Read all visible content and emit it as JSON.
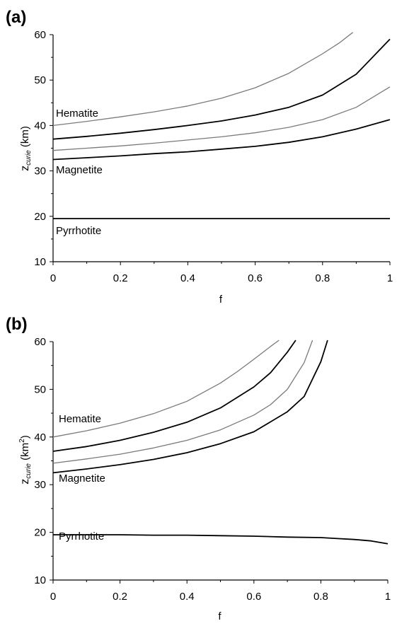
{
  "chart_data": [
    {
      "panel_label": "(a)",
      "type": "line",
      "xlabel": "f",
      "ylabel_main": "z",
      "ylabel_sub": "curie",
      "ylabel_unit": "(km)",
      "ylabel_unit_sup": "",
      "xlim": [
        0,
        1
      ],
      "ylim": [
        10,
        60
      ],
      "xticks": [
        "0",
        "0.2",
        "0.4",
        "0.6",
        "0.8",
        "1"
      ],
      "xtick_values": [
        0,
        0.2,
        0.4,
        0.6,
        0.8,
        1
      ],
      "yticks": [
        "10",
        "20",
        "30",
        "40",
        "50",
        "60"
      ],
      "ytick_values": [
        10,
        20,
        30,
        40,
        50,
        60
      ],
      "grid": false,
      "annotations": [
        "Hematite",
        "Magnetite",
        "Pyrrhotite"
      ],
      "series": [
        {
          "color": "#7a7a7a",
          "x": [
            0,
            0.1,
            0.2,
            0.3,
            0.4,
            0.5,
            0.6,
            0.7,
            0.8,
            0.85,
            0.89
          ],
          "y": [
            40,
            40.9,
            41.9,
            43.0,
            44.3,
            46.0,
            48.3,
            51.5,
            55.8,
            58.2,
            60.5
          ]
        },
        {
          "color": "#000000",
          "x": [
            0,
            0.1,
            0.2,
            0.3,
            0.4,
            0.5,
            0.6,
            0.7,
            0.8,
            0.9,
            1
          ],
          "y": [
            37,
            37.6,
            38.3,
            39.1,
            40.0,
            41.0,
            42.3,
            44.0,
            46.7,
            51.3,
            59.0
          ]
        },
        {
          "color": "#7a7a7a",
          "x": [
            0,
            0.1,
            0.2,
            0.3,
            0.4,
            0.5,
            0.6,
            0.7,
            0.8,
            0.9,
            1
          ],
          "y": [
            34.5,
            35.0,
            35.5,
            36.1,
            36.8,
            37.5,
            38.4,
            39.6,
            41.3,
            44.0,
            48.5
          ]
        },
        {
          "color": "#000000",
          "x": [
            0,
            0.1,
            0.2,
            0.3,
            0.4,
            0.5,
            0.6,
            0.7,
            0.8,
            0.9,
            1
          ],
          "y": [
            32.5,
            32.9,
            33.3,
            33.8,
            34.2,
            34.8,
            35.4,
            36.3,
            37.5,
            39.2,
            41.3
          ]
        },
        {
          "color": "#000000",
          "x": [
            0,
            1
          ],
          "y": [
            19.5,
            19.5
          ]
        }
      ]
    },
    {
      "panel_label": "(b)",
      "type": "line",
      "xlabel": "f",
      "ylabel_main": "z",
      "ylabel_sub": "curie",
      "ylabel_unit": "(km",
      "ylabel_unit_sup": "2",
      "ylabel_unit_close": ")",
      "xlim": [
        0,
        1
      ],
      "ylim": [
        10,
        60
      ],
      "xticks": [
        "0",
        "0.2",
        "0.4",
        "0.6",
        "0.8",
        "1"
      ],
      "xtick_values": [
        0,
        0.2,
        0.4,
        0.6,
        0.8,
        1
      ],
      "yticks": [
        "10",
        "20",
        "30",
        "40",
        "50",
        "60"
      ],
      "ytick_values": [
        10,
        20,
        30,
        40,
        50,
        60
      ],
      "grid": false,
      "annotations": [
        "Hematite",
        "Magnetite",
        "Pyrrhotite"
      ],
      "series": [
        {
          "color": "#7a7a7a",
          "x": [
            0,
            0.1,
            0.2,
            0.3,
            0.4,
            0.5,
            0.55,
            0.6,
            0.65,
            0.675
          ],
          "y": [
            40,
            41.3,
            42.9,
            44.9,
            47.5,
            51.3,
            53.7,
            56.3,
            59.0,
            60.3
          ]
        },
        {
          "color": "#000000",
          "x": [
            0,
            0.1,
            0.2,
            0.3,
            0.4,
            0.5,
            0.6,
            0.65,
            0.7,
            0.725
          ],
          "y": [
            37,
            38.0,
            39.3,
            41.0,
            43.1,
            46.1,
            50.5,
            53.5,
            57.8,
            60.3
          ]
        },
        {
          "color": "#7a7a7a",
          "x": [
            0,
            0.1,
            0.2,
            0.3,
            0.4,
            0.5,
            0.6,
            0.65,
            0.7,
            0.75,
            0.775
          ],
          "y": [
            34.5,
            35.4,
            36.4,
            37.7,
            39.3,
            41.5,
            44.6,
            46.8,
            50.0,
            55.6,
            60.3
          ]
        },
        {
          "color": "#000000",
          "x": [
            0,
            0.1,
            0.2,
            0.3,
            0.4,
            0.5,
            0.6,
            0.7,
            0.75,
            0.8,
            0.82
          ],
          "y": [
            32.5,
            33.3,
            34.2,
            35.3,
            36.7,
            38.6,
            41.1,
            45.3,
            48.5,
            55.8,
            60.3
          ]
        },
        {
          "color": "#000000",
          "x": [
            0,
            0.1,
            0.2,
            0.3,
            0.4,
            0.5,
            0.6,
            0.7,
            0.8,
            0.85,
            0.9,
            0.95,
            1
          ],
          "y": [
            19.5,
            19.5,
            19.5,
            19.4,
            19.4,
            19.3,
            19.2,
            19.0,
            18.9,
            18.7,
            18.5,
            18.2,
            17.6
          ]
        }
      ]
    }
  ]
}
